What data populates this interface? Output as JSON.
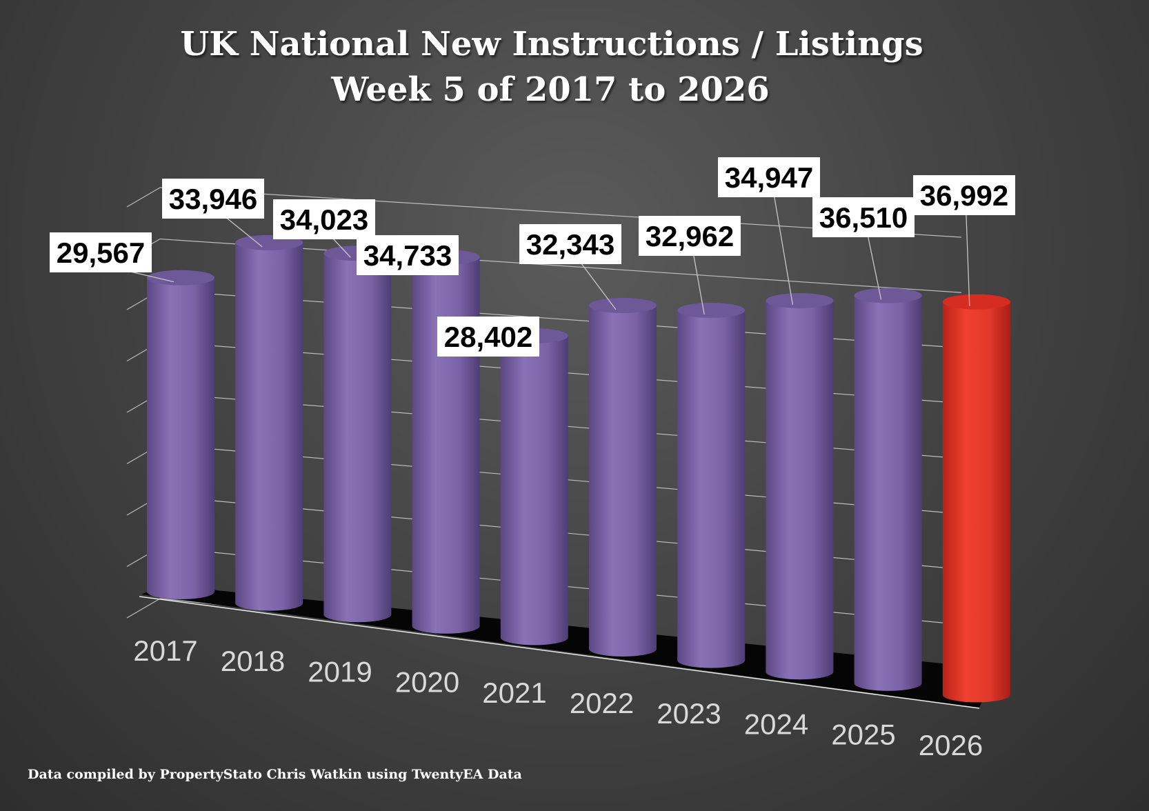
{
  "chart_data": {
    "type": "bar",
    "title": "UK National New Instructions / Listings",
    "subtitle": "Week 5 of 2017 to 2026",
    "categories": [
      "2017",
      "2018",
      "2019",
      "2020",
      "2021",
      "2022",
      "2023",
      "2024",
      "2025",
      "2026"
    ],
    "series": [
      {
        "values": [
          29567,
          33946,
          34023,
          34733,
          28402,
          32343,
          32962,
          34947,
          36510,
          36992
        ]
      }
    ],
    "data_labels": [
      "29,567",
      "33,946",
      "34,023",
      "34,733",
      "28,402",
      "32,343",
      "32,962",
      "34,947",
      "36,510",
      "36,992"
    ],
    "ylim": [
      0,
      40000
    ],
    "grid": true,
    "legend": "none",
    "bar_color": "#8066a8",
    "highlight_color": "#e8352a",
    "highlight_index": 9
  },
  "footer": "Data compiled by PropertyStato Chris Watkin using TwentyEA Data"
}
